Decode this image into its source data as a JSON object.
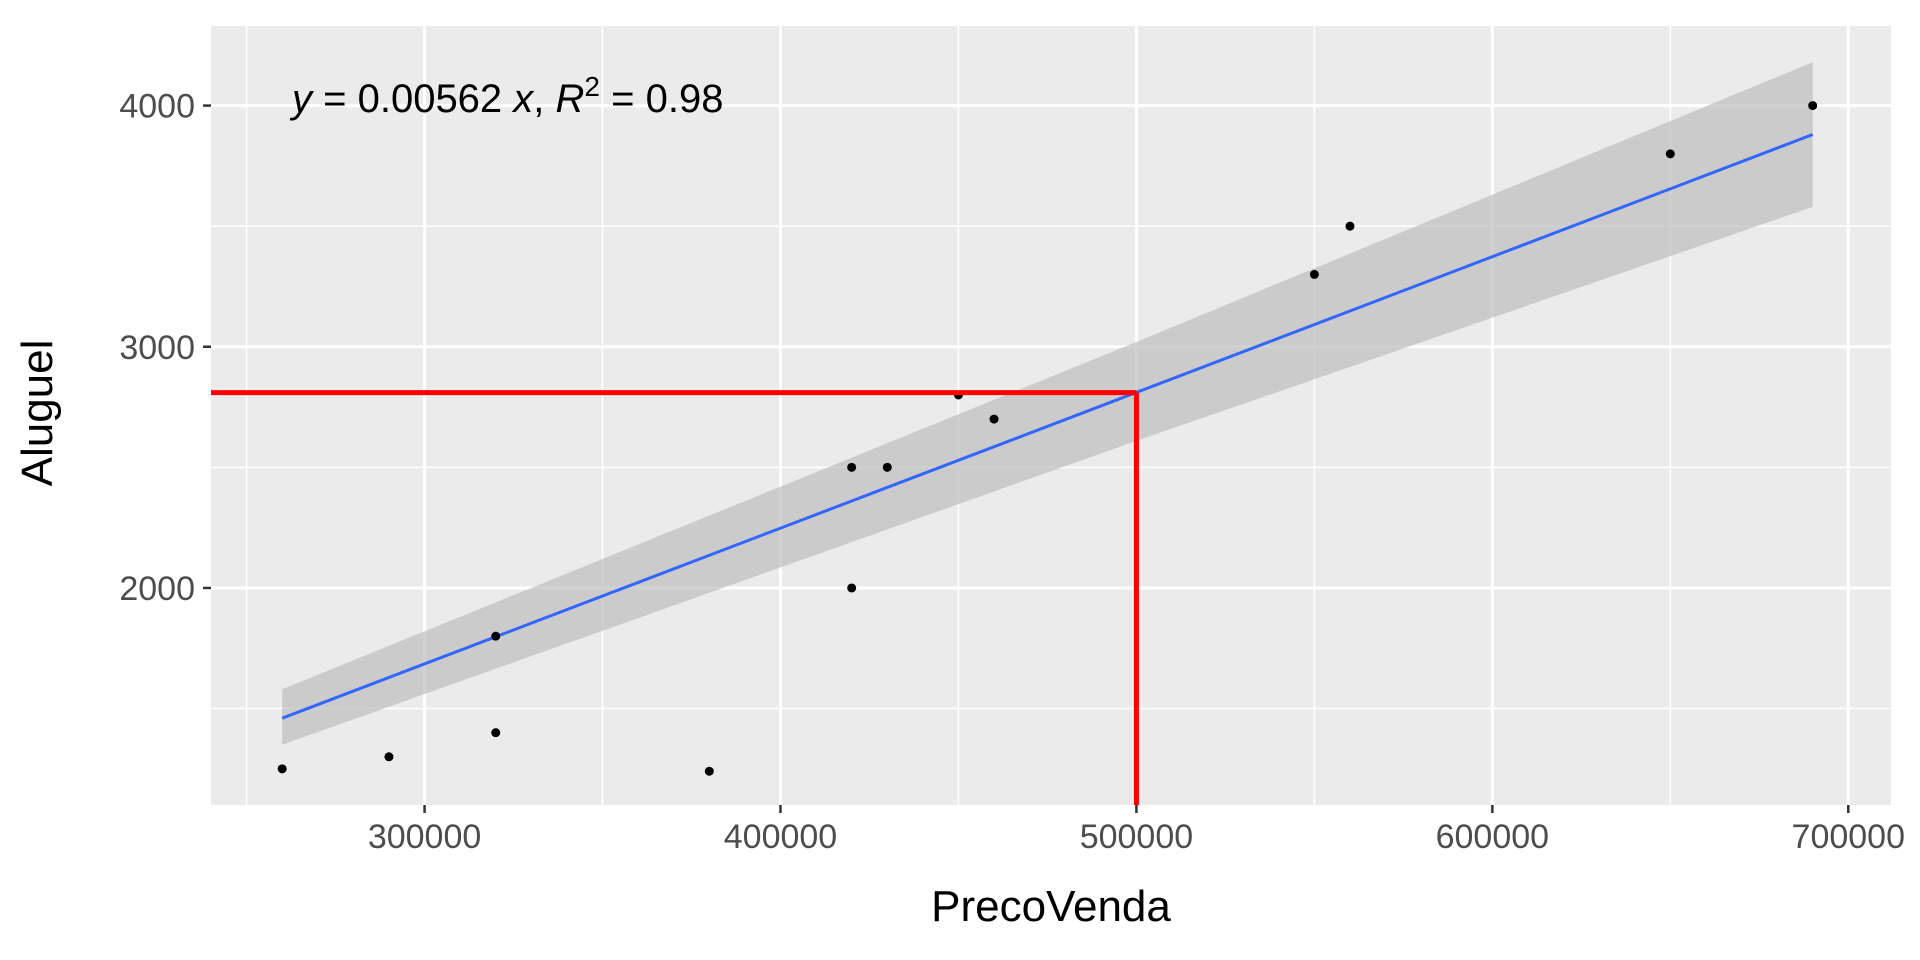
{
  "chart_data": {
    "type": "scatter",
    "title": "",
    "xlabel": "PrecoVenda",
    "ylabel": "Aluguel",
    "xlim": [
      240000,
      712000
    ],
    "ylim": [
      1100,
      4330
    ],
    "x_major_ticks": [
      300000,
      400000,
      500000,
      600000,
      700000
    ],
    "x_minor_ticks": [
      250000,
      350000,
      450000,
      550000,
      650000
    ],
    "y_major_ticks": [
      2000,
      3000,
      4000
    ],
    "y_minor_ticks": [
      1500,
      2500,
      3500
    ],
    "x_tick_labels": [
      "300000",
      "400000",
      "500000",
      "600000",
      "700000"
    ],
    "y_tick_labels": [
      "2000",
      "3000",
      "4000"
    ],
    "grid": true,
    "points": [
      {
        "x": 260000,
        "y": 1250
      },
      {
        "x": 290000,
        "y": 1300
      },
      {
        "x": 320000,
        "y": 1800
      },
      {
        "x": 320000,
        "y": 1400
      },
      {
        "x": 380000,
        "y": 1240
      },
      {
        "x": 420000,
        "y": 2500
      },
      {
        "x": 420000,
        "y": 2000
      },
      {
        "x": 430000,
        "y": 2500
      },
      {
        "x": 450000,
        "y": 2800
      },
      {
        "x": 460000,
        "y": 2700
      },
      {
        "x": 550000,
        "y": 3300
      },
      {
        "x": 560000,
        "y": 3500
      },
      {
        "x": 650000,
        "y": 3800
      },
      {
        "x": 690000,
        "y": 4000
      }
    ],
    "fit_line": {
      "x": [
        260000,
        690000
      ],
      "y": [
        1460,
        3880
      ]
    },
    "confidence_band": {
      "x": [
        260000,
        500000,
        690000
      ],
      "upper": [
        1580,
        3020,
        4180
      ],
      "lower": [
        1350,
        2610,
        3580
      ]
    },
    "equation": {
      "y_var": "y",
      "eq_part1": " = 0.00562 ",
      "x_var": "x",
      "sep": ", ",
      "r_var": "R",
      "r_exp": "2",
      "eq_part2": " = 0.98"
    },
    "prediction": {
      "x": 500000,
      "y": 2810
    },
    "colors": {
      "panel_bg": "#ebebeb",
      "grid": "#ffffff",
      "points": "#000000",
      "fit_line": "#3366ff",
      "confidence_band": "#bebebe",
      "prediction_lines": "#ff0000"
    }
  }
}
